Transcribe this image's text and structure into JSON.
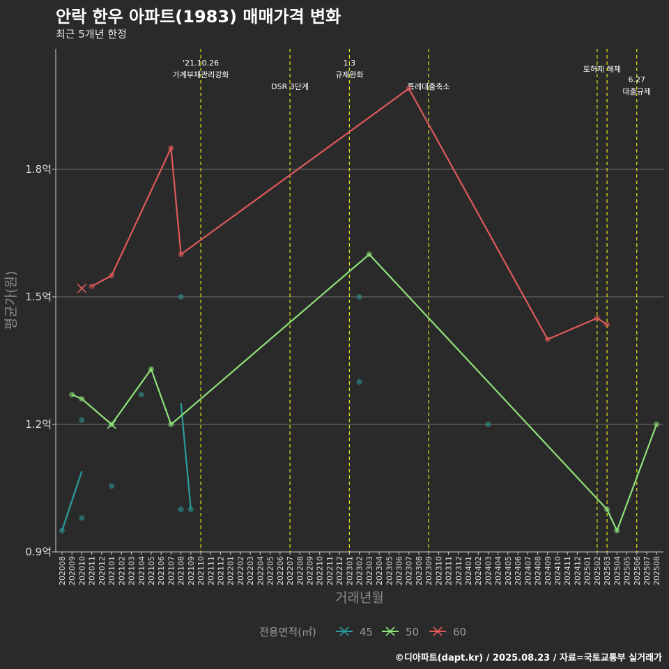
{
  "title": "안락 한우 아파트(1983) 매매가격 변화",
  "subtitle": "최근 5개년 한정",
  "caption": "©디아파트(dapt.kr) / 2025.08.23 / 자료=국토교통부 실거래가",
  "chart_data": {
    "type": "line",
    "xlabel": "거래년월",
    "ylabel": "평균가(원)",
    "ylim": [
      0.9,
      2.08
    ],
    "yticks": [
      {
        "v": 0.9,
        "label": "0.9억"
      },
      {
        "v": 1.2,
        "label": "1.2억"
      },
      {
        "v": 1.5,
        "label": "1.5억"
      },
      {
        "v": 1.8,
        "label": "1.8억"
      }
    ],
    "categories": [
      "202008",
      "202009",
      "202010",
      "202011",
      "202012",
      "202101",
      "202102",
      "202103",
      "202104",
      "202105",
      "202106",
      "202107",
      "202108",
      "202109",
      "202110",
      "202111",
      "202112",
      "202201",
      "202202",
      "202203",
      "202204",
      "202205",
      "202206",
      "202207",
      "202208",
      "202209",
      "202210",
      "202211",
      "202212",
      "202301",
      "202302",
      "202303",
      "202304",
      "202305",
      "202306",
      "202307",
      "202308",
      "202309",
      "202310",
      "202311",
      "202312",
      "202401",
      "202402",
      "202403",
      "202404",
      "202405",
      "202406",
      "202407",
      "202408",
      "202409",
      "202410",
      "202411",
      "202412",
      "202501",
      "202502",
      "202503",
      "202504",
      "202505",
      "202506",
      "202507",
      "202508"
    ],
    "legend": {
      "title": "전용면적(㎡)",
      "position": "bottom"
    },
    "series": [
      {
        "name": "45",
        "color": "#2a9d9a",
        "lines": [
          [
            [
              "202008",
              0.95
            ],
            [
              "202010",
              1.09
            ]
          ],
          [
            [
              "202108",
              1.25
            ],
            [
              "202109",
              1.0
            ]
          ]
        ],
        "points": [
          [
            "202008",
            0.95
          ],
          [
            "202010",
            1.21
          ],
          [
            "202010",
            0.98
          ],
          [
            "202101",
            1.055
          ],
          [
            "202104",
            1.27
          ],
          [
            "202108",
            1.5
          ],
          [
            "202108",
            1.0
          ],
          [
            "202109",
            1.0
          ],
          [
            "202302",
            1.5
          ],
          [
            "202302",
            1.3
          ],
          [
            "202403",
            1.2
          ]
        ],
        "cancelled": []
      },
      {
        "name": "50",
        "color": "#8fe37a",
        "lines": [
          [
            [
              "202009",
              1.27
            ],
            [
              "202010",
              1.26
            ],
            [
              "202101",
              1.2
            ],
            [
              "202105",
              1.33
            ],
            [
              "202107",
              1.2
            ],
            [
              "202303",
              1.6
            ],
            [
              "202503",
              1.0
            ],
            [
              "202504",
              0.95
            ],
            [
              "202508",
              1.2
            ]
          ]
        ],
        "points": [
          [
            "202009",
            1.27
          ],
          [
            "202010",
            1.26
          ],
          [
            "202101",
            1.2
          ],
          [
            "202105",
            1.33
          ],
          [
            "202107",
            1.2
          ],
          [
            "202303",
            1.6
          ],
          [
            "202503",
            1.0
          ],
          [
            "202504",
            0.95
          ],
          [
            "202508",
            1.2
          ]
        ],
        "cancelled": [
          [
            "202101",
            1.2
          ]
        ]
      },
      {
        "name": "60",
        "color": "#e05a5a",
        "lines": [
          [
            [
              "202011",
              1.525
            ],
            [
              "202101",
              1.55
            ],
            [
              "202107",
              1.85
            ],
            [
              "202108",
              1.6
            ],
            [
              "202307",
              1.99
            ],
            [
              "202409",
              1.4
            ],
            [
              "202502",
              1.45
            ],
            [
              "202503",
              1.435
            ]
          ]
        ],
        "points": [
          [
            "202011",
            1.525
          ],
          [
            "202101",
            1.55
          ],
          [
            "202107",
            1.85
          ],
          [
            "202108",
            1.6
          ],
          [
            "202307",
            1.99
          ],
          [
            "202409",
            1.4
          ],
          [
            "202502",
            1.45
          ],
          [
            "202503",
            1.435
          ]
        ],
        "cancelled": [
          [
            "202010",
            1.52
          ]
        ]
      }
    ],
    "annotations": [
      {
        "x": "202110",
        "lines": [
          "'21.10.26",
          "가계부채관리강화"
        ],
        "row": 0
      },
      {
        "x": "202207",
        "lines": [
          "DSR 3단계"
        ],
        "row": 2
      },
      {
        "x": "202301",
        "lines": [
          "1.3",
          "규제완화"
        ],
        "row": 0
      },
      {
        "x": "202309",
        "lines": [
          "특례대출축소"
        ],
        "row": 2
      },
      {
        "x": "202502",
        "lines": [
          "토허제 해제"
        ],
        "row": 1,
        "offset": "center-between"
      },
      {
        "x": "202503",
        "lines": [],
        "row": 1
      },
      {
        "x": "202506",
        "lines": [
          "6.27",
          "대출규제"
        ],
        "row": 2
      }
    ]
  }
}
